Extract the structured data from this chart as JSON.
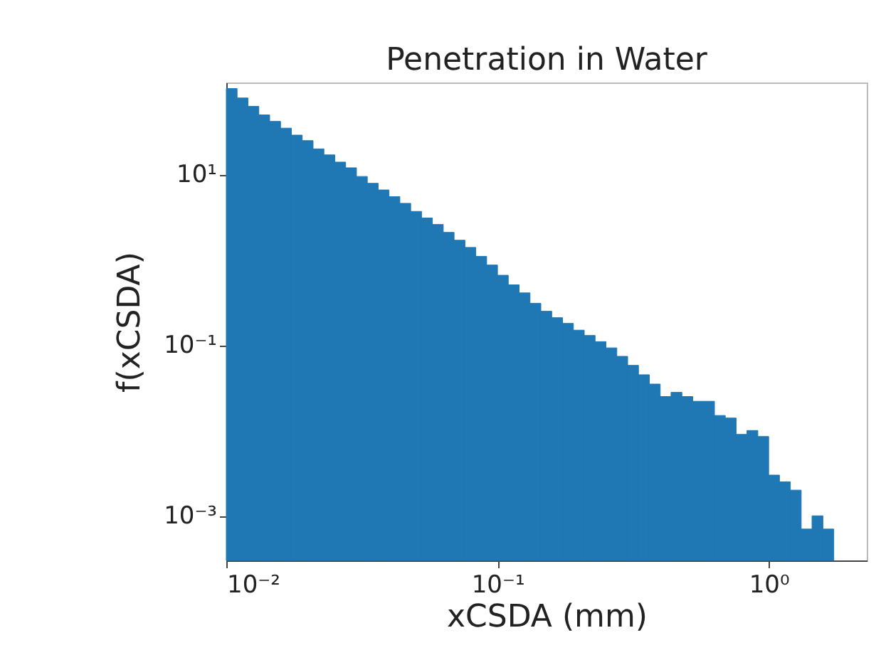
{
  "chart_data": {
    "type": "histogram",
    "title": "Penetration in Water",
    "xlabel": "xCSDA (mm)",
    "ylabel": "f(xCSDA)",
    "log": "xy",
    "color": "#1f77b4",
    "bins": [
      0.01,
      0.01096,
      0.01202,
      0.01318,
      0.01445,
      0.01585,
      0.01738,
      0.01905,
      0.02089,
      0.02291,
      0.02512,
      0.02754,
      0.0302,
      0.03311,
      0.03631,
      0.03981,
      0.04365,
      0.04786,
      0.05248,
      0.05754,
      0.0631,
      0.06918,
      0.07586,
      0.08318,
      0.0912,
      0.1,
      0.1096,
      0.1202,
      0.1318,
      0.1445,
      0.1585,
      0.1738,
      0.1905,
      0.2089,
      0.2291,
      0.2512,
      0.2754,
      0.302,
      0.3311,
      0.3631,
      0.3981,
      0.4365,
      0.4786,
      0.5248,
      0.5754,
      0.631,
      0.6918,
      0.7586,
      0.8318,
      0.912,
      1.0,
      1.096,
      1.202,
      1.318,
      1.445,
      1.585,
      1.738
    ],
    "values": [
      102,
      79,
      63,
      50,
      42,
      35,
      29,
      25,
      20,
      17,
      14,
      12,
      9.5,
      7.9,
      6.6,
      5.5,
      4.6,
      3.7,
      3.1,
      2.6,
      2.1,
      1.7,
      1.4,
      1.1,
      0.87,
      0.66,
      0.51,
      0.41,
      0.31,
      0.25,
      0.21,
      0.18,
      0.15,
      0.13,
      0.11,
      0.093,
      0.074,
      0.058,
      0.045,
      0.035,
      0.025,
      0.028,
      0.025,
      0.022,
      0.022,
      0.015,
      0.014,
      0.009,
      0.01,
      0.0085,
      0.003,
      0.0025,
      0.002,
      0.0007,
      0.001,
      0.0007
    ],
    "xlim": [
      0.01,
      2.3
    ],
    "ylim": [
      0.0003,
      120
    ],
    "xticks": [
      {
        "value": 0.01,
        "label": "10⁻²"
      },
      {
        "value": 0.1,
        "label": "10⁻¹"
      },
      {
        "value": 1,
        "label": "10⁰"
      }
    ],
    "yticks": [
      {
        "value": 10,
        "label": "10¹"
      },
      {
        "value": 0.1,
        "label": "10⁻¹"
      },
      {
        "value": 0.001,
        "label": "10⁻³"
      }
    ],
    "grid": false
  }
}
